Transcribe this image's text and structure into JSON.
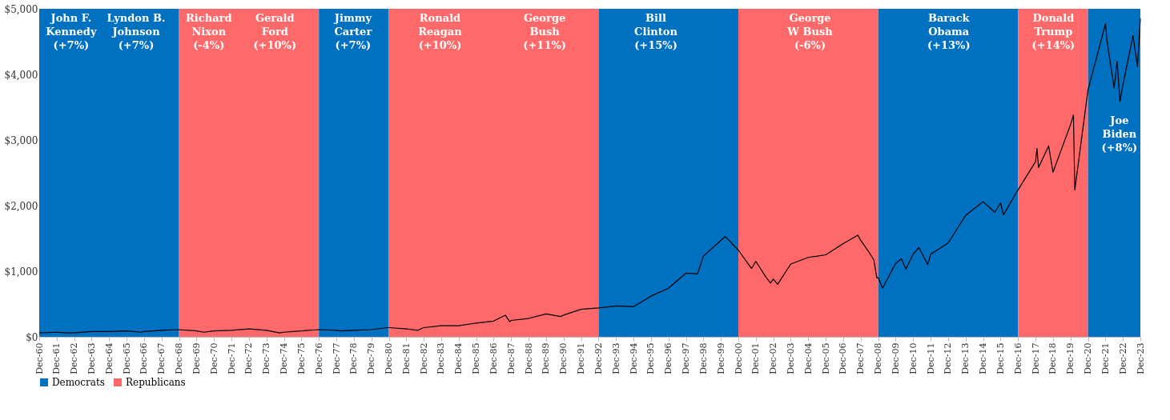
{
  "chart_data": {
    "type": "line",
    "legend": "bottom",
    "line_style": "solid",
    "marker": "none",
    "grid": false,
    "xlim": [
      "1960-12",
      "2023-12"
    ],
    "ylim": [
      0,
      5000
    ],
    "yticks": [
      {
        "value": 0,
        "label": "$0"
      },
      {
        "value": 1000,
        "label": "$1,000"
      },
      {
        "value": 2000,
        "label": "$2,000"
      },
      {
        "value": 3000,
        "label": "$3,000"
      },
      {
        "value": 4000,
        "label": "$4,000"
      },
      {
        "value": 5000,
        "label": "$5,000"
      }
    ],
    "xticks": [
      {
        "value": "1960-12",
        "label": "Dec-60"
      },
      {
        "value": "1961-12",
        "label": "Dec-61"
      },
      {
        "value": "1962-12",
        "label": "Dec-62"
      },
      {
        "value": "1963-12",
        "label": "Dec-63"
      },
      {
        "value": "1964-12",
        "label": "Dec-64"
      },
      {
        "value": "1965-12",
        "label": "Dec-65"
      },
      {
        "value": "1966-12",
        "label": "Dec-66"
      },
      {
        "value": "1967-12",
        "label": "Dec-67"
      },
      {
        "value": "1968-12",
        "label": "Dec-68"
      },
      {
        "value": "1969-12",
        "label": "Dec-69"
      },
      {
        "value": "1970-12",
        "label": "Dec-70"
      },
      {
        "value": "1971-12",
        "label": "Dec-71"
      },
      {
        "value": "1972-12",
        "label": "Dec-72"
      },
      {
        "value": "1973-12",
        "label": "Dec-73"
      },
      {
        "value": "1974-12",
        "label": "Dec-74"
      },
      {
        "value": "1975-12",
        "label": "Dec-75"
      },
      {
        "value": "1976-12",
        "label": "Dec-76"
      },
      {
        "value": "1977-12",
        "label": "Dec-77"
      },
      {
        "value": "1978-12",
        "label": "Dec-78"
      },
      {
        "value": "1979-12",
        "label": "Dec-79"
      },
      {
        "value": "1980-12",
        "label": "Dec-80"
      },
      {
        "value": "1981-12",
        "label": "Dec-81"
      },
      {
        "value": "1982-12",
        "label": "Dec-82"
      },
      {
        "value": "1983-12",
        "label": "Dec-83"
      },
      {
        "value": "1984-12",
        "label": "Dec-84"
      },
      {
        "value": "1985-12",
        "label": "Dec-85"
      },
      {
        "value": "1986-12",
        "label": "Dec-86"
      },
      {
        "value": "1987-12",
        "label": "Dec-87"
      },
      {
        "value": "1988-12",
        "label": "Dec-88"
      },
      {
        "value": "1989-12",
        "label": "Dec-89"
      },
      {
        "value": "1990-12",
        "label": "Dec-90"
      },
      {
        "value": "1991-12",
        "label": "Dec-91"
      },
      {
        "value": "1992-12",
        "label": "Dec-92"
      },
      {
        "value": "1993-12",
        "label": "Dec-93"
      },
      {
        "value": "1994-12",
        "label": "Dec-94"
      },
      {
        "value": "1995-12",
        "label": "Dec-95"
      },
      {
        "value": "1996-12",
        "label": "Dec-96"
      },
      {
        "value": "1997-12",
        "label": "Dec-97"
      },
      {
        "value": "1998-12",
        "label": "Dec-98"
      },
      {
        "value": "1999-12",
        "label": "Dec-99"
      },
      {
        "value": "2000-12",
        "label": "Dec-00"
      },
      {
        "value": "2001-12",
        "label": "Dec-01"
      },
      {
        "value": "2002-12",
        "label": "Dec-02"
      },
      {
        "value": "2003-12",
        "label": "Dec-03"
      },
      {
        "value": "2004-12",
        "label": "Dec-04"
      },
      {
        "value": "2005-12",
        "label": "Dec-05"
      },
      {
        "value": "2006-12",
        "label": "Dec-06"
      },
      {
        "value": "2007-12",
        "label": "Dec-07"
      },
      {
        "value": "2008-12",
        "label": "Dec-08"
      },
      {
        "value": "2009-12",
        "label": "Dec-09"
      },
      {
        "value": "2010-12",
        "label": "Dec-10"
      },
      {
        "value": "2011-12",
        "label": "Dec-11"
      },
      {
        "value": "2012-12",
        "label": "Dec-12"
      },
      {
        "value": "2013-12",
        "label": "Dec-13"
      },
      {
        "value": "2014-12",
        "label": "Dec-14"
      },
      {
        "value": "2015-12",
        "label": "Dec-15"
      },
      {
        "value": "2016-12",
        "label": "Dec-16"
      },
      {
        "value": "2017-12",
        "label": "Dec-17"
      },
      {
        "value": "2018-12",
        "label": "Dec-18"
      },
      {
        "value": "2019-12",
        "label": "Dec-19"
      },
      {
        "value": "2020-12",
        "label": "Dec-20"
      },
      {
        "value": "2021-12",
        "label": "Dec-21"
      },
      {
        "value": "2022-12",
        "label": "Dec-22"
      },
      {
        "value": "2023-12",
        "label": "Dec-23"
      }
    ],
    "bands": [
      {
        "axis": "x",
        "from": "1960-12",
        "to": "1968-12",
        "label": "Democrats",
        "color": "#0070c0"
      },
      {
        "axis": "x",
        "from": "1968-12",
        "to": "1976-12",
        "label": "Republicans",
        "color": "#ff6969"
      },
      {
        "axis": "x",
        "from": "1976-12",
        "to": "1980-12",
        "color": "#0070c0"
      },
      {
        "axis": "x",
        "from": "1980-12",
        "to": "1992-12",
        "color": "#ff6969"
      },
      {
        "axis": "x",
        "from": "1992-12",
        "to": "2000-12",
        "color": "#0070c0"
      },
      {
        "axis": "x",
        "from": "2000-12",
        "to": "2008-12",
        "color": "#ff6969"
      },
      {
        "axis": "x",
        "from": "2008-12",
        "to": "2016-12",
        "color": "#0070c0"
      },
      {
        "axis": "x",
        "from": "2016-12",
        "to": "2020-12",
        "color": "#ff6969"
      },
      {
        "axis": "x",
        "from": "2020-12",
        "to": "2023-12",
        "color": "#0070c0"
      }
    ],
    "annotations": [
      "John F.\nKennedy\n(+7%)",
      "Lyndon B.\nJohnson\n(+7%)",
      "Richard\nNixon\n(-4%)",
      "Gerald\nFord\n(+10%)",
      "Jimmy\nCarter\n(+7%)",
      "Ronald\nReagan\n(+10%)",
      "George\nBush\n(+11%)",
      "Bill\nClinton\n(+15%)",
      "George\nW Bush\n(-6%)",
      "Barack\nObama\n(+13%)",
      "Donald\nTrump\n(+14%)",
      "Joe\nBiden\n(+8%)"
    ],
    "series": [
      {
        "color": "#000000",
        "x": [
          "1960-12",
          "1961-12",
          "1962-06",
          "1962-12",
          "1963-12",
          "1964-12",
          "1965-12",
          "1966-10",
          "1966-12",
          "1967-12",
          "1968-11",
          "1969-12",
          "1970-05",
          "1970-12",
          "1971-12",
          "1972-12",
          "1973-12",
          "1974-09",
          "1974-12",
          "1975-12",
          "1976-12",
          "1977-12",
          "1978-03",
          "1978-12",
          "1979-12",
          "1980-11",
          "1980-12",
          "1981-12",
          "1982-08",
          "1982-12",
          "1983-12",
          "1984-12",
          "1985-12",
          "1986-12",
          "1987-08",
          "1987-11",
          "1987-12",
          "1988-12",
          "1989-12",
          "1990-10",
          "1990-12",
          "1991-12",
          "1992-12",
          "1993-12",
          "1994-12",
          "1995-12",
          "1996-12",
          "1997-12",
          "1998-08",
          "1998-12",
          "1999-12",
          "2000-03",
          "2000-12",
          "2001-09",
          "2001-12",
          "2002-07",
          "2002-10",
          "2002-12",
          "2003-03",
          "2003-12",
          "2004-12",
          "2005-12",
          "2006-12",
          "2007-10",
          "2007-12",
          "2008-06",
          "2008-09",
          "2008-11",
          "2008-12",
          "2009-03",
          "2009-12",
          "2010-04",
          "2010-07",
          "2010-12",
          "2011-04",
          "2011-10",
          "2011-12",
          "2012-12",
          "2013-12",
          "2014-12",
          "2015-08",
          "2015-12",
          "2016-02",
          "2016-12",
          "2017-12",
          "2018-01",
          "2018-02",
          "2018-09",
          "2018-12",
          "2019-12",
          "2020-02",
          "2020-03",
          "2020-12",
          "2021-12",
          "2022-01",
          "2022-06",
          "2022-08",
          "2022-10",
          "2022-12",
          "2023-07",
          "2023-10",
          "2023-12"
        ],
        "values": [
          60,
          70,
          60,
          60,
          80,
          80,
          90,
          70,
          80,
          100,
          110,
          90,
          70,
          90,
          100,
          120,
          100,
          60,
          70,
          90,
          110,
          100,
          90,
          100,
          110,
          140,
          140,
          120,
          100,
          140,
          170,
          170,
          210,
          240,
          330,
          230,
          250,
          280,
          350,
          310,
          330,
          420,
          440,
          470,
          460,
          620,
          740,
          970,
          960,
          1230,
          1470,
          1530,
          1320,
          1040,
          1150,
          910,
          820,
          880,
          800,
          1110,
          1210,
          1250,
          1420,
          1550,
          1470,
          1280,
          1170,
          900,
          900,
          740,
          1120,
          1190,
          1030,
          1260,
          1360,
          1100,
          1260,
          1430,
          1850,
          2060,
          1900,
          2040,
          1860,
          2240,
          2670,
          2870,
          2580,
          2910,
          2510,
          3230,
          3380,
          2240,
          3760,
          4770,
          4520,
          3790,
          4200,
          3590,
          3840,
          4590,
          4120,
          4850
        ]
      }
    ]
  }
}
